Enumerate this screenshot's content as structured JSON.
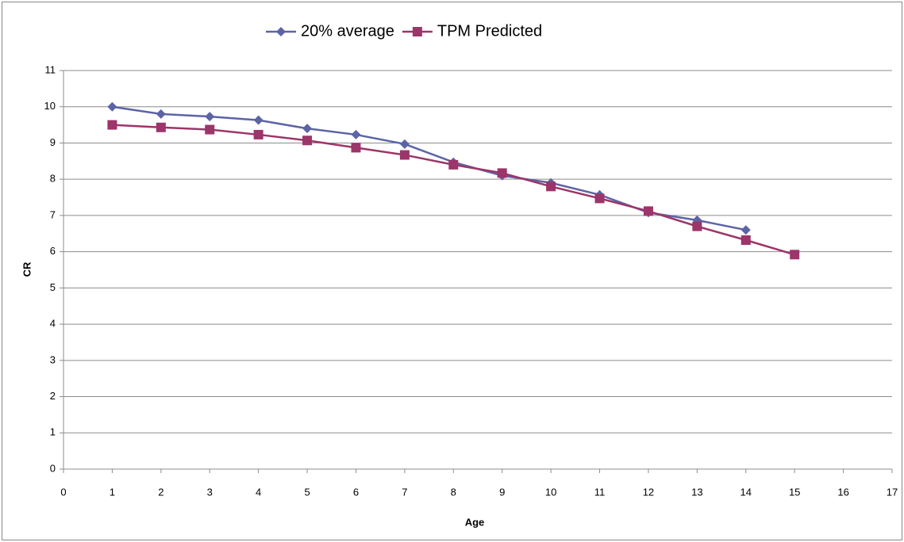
{
  "chart_data": {
    "type": "line",
    "x_label": "Age",
    "y_label": "CR",
    "x": [
      1,
      2,
      3,
      4,
      5,
      6,
      7,
      8,
      9,
      10,
      11,
      12,
      13,
      14,
      15
    ],
    "series": [
      {
        "name": "20% average",
        "color": "#5c64a6",
        "marker": "diamond",
        "values": [
          10.0,
          9.8,
          9.73,
          9.63,
          9.4,
          9.23,
          8.97,
          8.47,
          8.1,
          7.9,
          7.57,
          7.08,
          6.87,
          6.6,
          null
        ]
      },
      {
        "name": "TPM Predicted",
        "color": "#9c3569",
        "marker": "square",
        "values": [
          9.5,
          9.43,
          9.37,
          9.23,
          9.07,
          8.87,
          8.67,
          8.4,
          8.17,
          7.8,
          7.47,
          7.12,
          6.7,
          6.32,
          5.92
        ]
      }
    ],
    "xlim": [
      0,
      17
    ],
    "xticks": [
      0,
      1,
      2,
      3,
      4,
      5,
      6,
      7,
      8,
      9,
      10,
      11,
      12,
      13,
      14,
      15,
      16,
      17
    ],
    "ylim": [
      0,
      11
    ],
    "yticks": [
      0,
      1,
      2,
      3,
      4,
      5,
      6,
      7,
      8,
      9,
      10,
      11
    ],
    "grid": true,
    "legend": "top"
  }
}
